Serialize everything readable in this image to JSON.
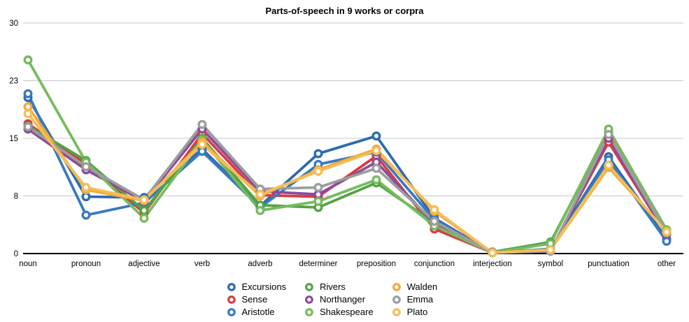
{
  "title": "Parts-of-speech in 9 works or corpra",
  "chart_data": {
    "type": "line",
    "title": "Parts-of-speech in 9 works or corpra",
    "xlabel": "",
    "ylabel": "",
    "ylim": [
      0,
      30
    ],
    "grid": true,
    "legend_position": "bottom",
    "marker_style": "open-circle",
    "yticks": {
      "values": [
        0,
        7.5,
        15,
        22.5,
        30
      ],
      "labels": [
        "0",
        "8",
        "15",
        "23",
        "30"
      ]
    },
    "categories": [
      "noun",
      "pronoun",
      "adjective",
      "verb",
      "adverb",
      "determiner",
      "preposition",
      "conjunction",
      "interjection",
      "symbol",
      "punctuation",
      "other"
    ],
    "series": [
      {
        "name": "Excursions",
        "color": "#2c6cb0",
        "values": [
          20.3,
          7.4,
          7.3,
          13.6,
          6.2,
          13.0,
          15.3,
          4.6,
          0.1,
          0.6,
          12.6,
          1.9
        ]
      },
      {
        "name": "Sense",
        "color": "#d93b41",
        "values": [
          16.9,
          11.7,
          5.3,
          15.6,
          7.6,
          7.4,
          12.7,
          3.2,
          0.1,
          0.4,
          14.5,
          2.5
        ]
      },
      {
        "name": "Aristotle",
        "color": "#3a7abf",
        "values": [
          20.8,
          5.0,
          6.6,
          13.3,
          6.0,
          11.6,
          13.2,
          4.4,
          0.1,
          0.5,
          12.2,
          1.6
        ]
      },
      {
        "name": "Rivers",
        "color": "#53a344",
        "values": [
          16.6,
          12.1,
          5.6,
          15.0,
          6.3,
          6.0,
          9.2,
          4.0,
          0.2,
          1.5,
          15.8,
          3.0
        ]
      },
      {
        "name": "Northanger",
        "color": "#8d4b9c",
        "values": [
          16.2,
          10.9,
          6.8,
          16.2,
          8.1,
          7.7,
          11.9,
          3.9,
          0.15,
          0.3,
          15.0,
          2.5
        ]
      },
      {
        "name": "Shakespeare",
        "color": "#76bb5e",
        "values": [
          25.2,
          11.9,
          4.6,
          14.8,
          5.6,
          6.8,
          9.6,
          3.6,
          0.1,
          1.3,
          16.2,
          3.1
        ]
      },
      {
        "name": "Walden",
        "color": "#f4a83a",
        "values": [
          19.1,
          8.3,
          6.9,
          14.5,
          7.5,
          10.9,
          13.6,
          5.5,
          0.1,
          0.5,
          11.2,
          2.9
        ]
      },
      {
        "name": "Emma",
        "color": "#9d9d9d",
        "values": [
          16.5,
          11.3,
          7.0,
          16.8,
          8.4,
          8.6,
          11.1,
          4.2,
          0.1,
          0.3,
          15.5,
          2.7
        ]
      },
      {
        "name": "Plato",
        "color": "#f6bd57",
        "values": [
          18.2,
          8.6,
          7.0,
          14.2,
          7.7,
          10.7,
          13.4,
          5.7,
          0.1,
          0.5,
          11.5,
          2.8
        ]
      }
    ],
    "style": {
      "gridline_color": "#c8c8c8",
      "axis_color": "#000000",
      "tick_label_color": "#000000",
      "background": "#ffffff"
    }
  }
}
